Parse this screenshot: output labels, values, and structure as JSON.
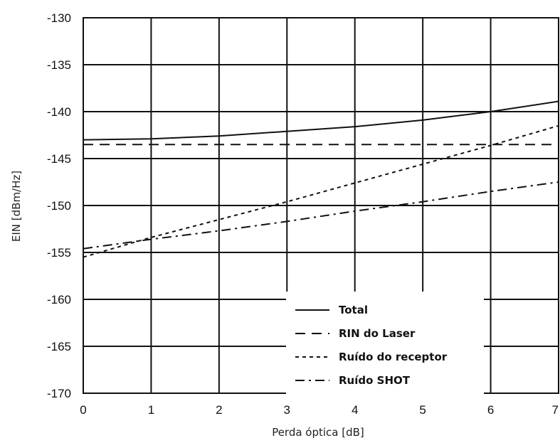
{
  "chart_data": {
    "type": "line",
    "xlabel": "Perda óptica  [dB]",
    "ylabel": "EIN [dBm/Hz]",
    "xlim": [
      0,
      7
    ],
    "ylim": [
      -170,
      -130
    ],
    "x_ticks": [
      "0",
      "1",
      "2",
      "3",
      "4",
      "5",
      "6",
      "7"
    ],
    "y_ticks": [
      "-130",
      "-135",
      "-140",
      "-145",
      "-150",
      "-155",
      "-160",
      "-165",
      "-170"
    ],
    "grid": true,
    "legend_position": "bottom-right",
    "series": [
      {
        "name": "Total",
        "style": "solid",
        "x": [
          0,
          1,
          2,
          3,
          4,
          5,
          6,
          7
        ],
        "y": [
          -143.0,
          -142.9,
          -142.6,
          -142.1,
          -141.6,
          -140.9,
          -140.0,
          -138.9
        ]
      },
      {
        "name": "RIN do Laser",
        "style": "dashed",
        "x": [
          0,
          7
        ],
        "y": [
          -143.5,
          -143.5
        ]
      },
      {
        "name": "Ruído do receptor",
        "style": "dotted",
        "x": [
          0,
          1,
          2,
          3,
          4,
          5,
          6,
          7
        ],
        "y": [
          -155.5,
          -153.4,
          -151.5,
          -149.6,
          -147.6,
          -145.6,
          -143.6,
          -141.5
        ]
      },
      {
        "name": "Ruído SHOT",
        "style": "dashdot",
        "x": [
          0,
          1,
          2,
          3,
          4,
          5,
          6,
          7
        ],
        "y": [
          -154.6,
          -153.6,
          -152.7,
          -151.7,
          -150.6,
          -149.6,
          -148.5,
          -147.5
        ]
      }
    ]
  }
}
